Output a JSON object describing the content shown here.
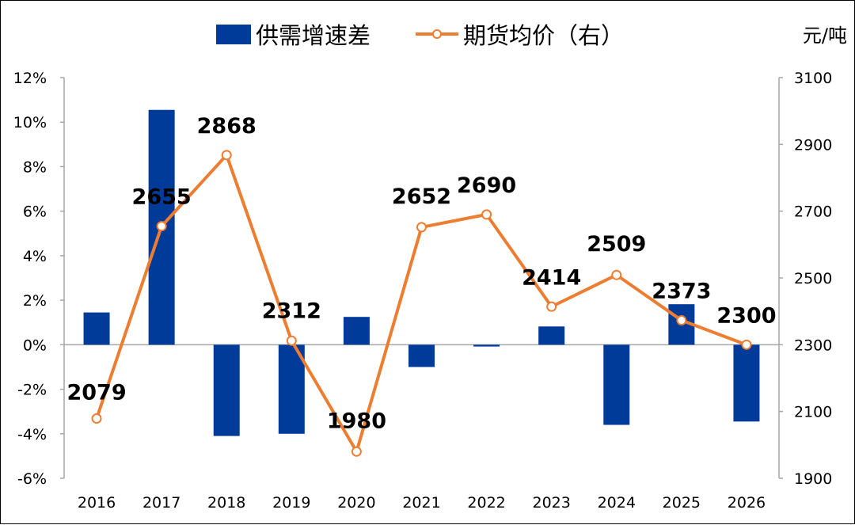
{
  "chart_data": {
    "type": "bar+line",
    "categories": [
      "2016",
      "2017",
      "2018",
      "2019",
      "2020",
      "2021",
      "2022",
      "2023",
      "2024",
      "2025",
      "2026"
    ],
    "series": [
      {
        "name": "供需增速差",
        "type": "bar",
        "axis": "left",
        "color": "#003B9A",
        "values": [
          0.0145,
          0.1055,
          -0.041,
          -0.04,
          0.0125,
          -0.01,
          -0.0008,
          0.0082,
          -0.036,
          0.0182,
          -0.0345
        ]
      },
      {
        "name": "期货均价（右）",
        "type": "line",
        "axis": "right",
        "color": "#ED7D31",
        "marker_fill": "#ffffff",
        "values": [
          2079,
          2655,
          2868,
          2312,
          1980,
          2652,
          2690,
          2414,
          2509,
          2373,
          2300
        ],
        "data_labels": [
          "2079",
          "2655",
          "2868",
          "2312",
          "1980",
          "2652",
          "2690",
          "2414",
          "2509",
          "2373",
          "2300"
        ]
      }
    ],
    "y_left": {
      "min": -0.06,
      "max": 0.12,
      "step": 0.02,
      "tick_labels": [
        "-6%",
        "-4%",
        "-2%",
        "0%",
        "2%",
        "4%",
        "6%",
        "8%",
        "10%",
        "12%"
      ]
    },
    "y_right": {
      "min": 1900,
      "max": 3100,
      "step": 200,
      "unit": "元/吨",
      "tick_labels": [
        "1900",
        "2100",
        "2300",
        "2500",
        "2700",
        "2900",
        "3100"
      ]
    },
    "legend_position": "top",
    "grid": false
  }
}
